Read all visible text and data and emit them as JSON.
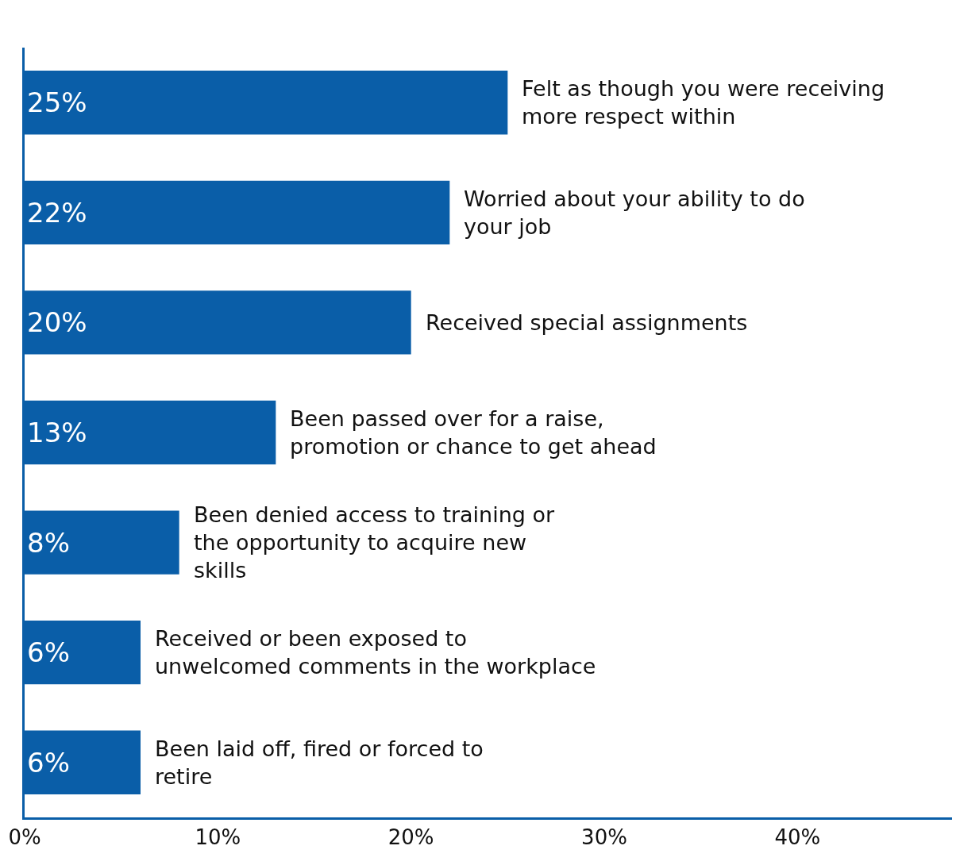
{
  "chart_data": {
    "type": "bar",
    "orientation": "horizontal",
    "categories": [
      "Felt as though you were receiving more respect within",
      "Worried about your ability to do your job",
      "Received special assignments",
      "Been passed over for a raise, promotion or chance to get ahead",
      "Been denied access to training or the opportunity to acquire new skills",
      "Received or been exposed to unwelcomed comments in the workplace",
      "Been laid off, fired or forced to retire"
    ],
    "values": [
      25,
      22,
      20,
      13,
      8,
      6,
      6
    ],
    "value_labels": [
      "25%",
      "22%",
      "20%",
      "13%",
      "8%",
      "6%",
      "6%"
    ],
    "color": "#0a5ea8",
    "xlim": [
      0,
      48
    ],
    "xticks": [
      {
        "value": 0,
        "label": "0%"
      },
      {
        "value": 10,
        "label": "10%"
      },
      {
        "value": 20,
        "label": "20%"
      },
      {
        "value": 30,
        "label": "30%"
      },
      {
        "value": 40,
        "label": "40%"
      }
    ],
    "tick_labels": "x"
  }
}
